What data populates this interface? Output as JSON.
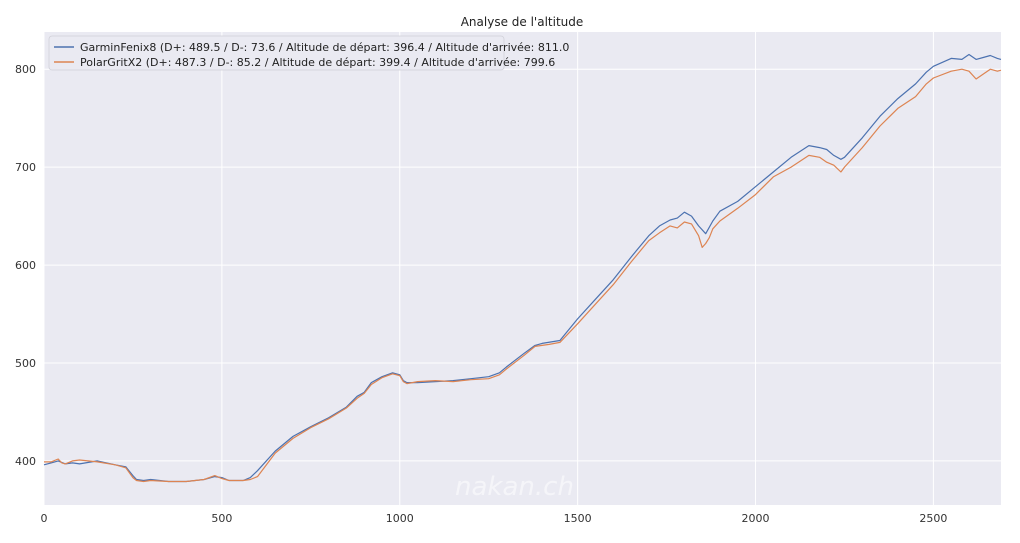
{
  "chart_data": {
    "type": "line",
    "title": "Analyse de l'altitude",
    "xlabel": "",
    "ylabel": "",
    "xlim": [
      0,
      2690
    ],
    "ylim": [
      355,
      838
    ],
    "xticks": [
      0,
      500,
      1000,
      1500,
      2000,
      2500
    ],
    "yticks": [
      400,
      500,
      600,
      700,
      800
    ],
    "grid": true,
    "background": "#eaeaf2",
    "legend_position": "top-left",
    "watermark": "nakan.ch",
    "series": [
      {
        "name": "GarminFenix8 (D+: 489.5 / D-: 73.6 / Altitude de départ: 396.4 / Altitude d'arrivée: 811.0",
        "color": "#4c72b0",
        "x": [
          0,
          20,
          40,
          60,
          80,
          100,
          150,
          200,
          230,
          250,
          260,
          280,
          300,
          350,
          400,
          450,
          480,
          500,
          520,
          560,
          580,
          600,
          650,
          700,
          750,
          800,
          850,
          880,
          900,
          920,
          950,
          980,
          1000,
          1010,
          1020,
          1050,
          1100,
          1150,
          1200,
          1250,
          1280,
          1300,
          1350,
          1380,
          1400,
          1450,
          1500,
          1550,
          1600,
          1650,
          1700,
          1730,
          1760,
          1780,
          1800,
          1820,
          1840,
          1860,
          1880,
          1900,
          1950,
          2000,
          2050,
          2100,
          2150,
          2180,
          2200,
          2220,
          2240,
          2250,
          2300,
          2350,
          2400,
          2450,
          2480,
          2500,
          2550,
          2580,
          2600,
          2620,
          2640,
          2660,
          2680,
          2690
        ],
        "y": [
          396,
          398,
          400,
          397,
          398,
          397,
          400,
          396,
          394,
          385,
          381,
          380,
          381,
          379,
          379,
          381,
          384,
          383,
          380,
          380,
          383,
          390,
          410,
          425,
          435,
          444,
          455,
          466,
          470,
          480,
          486,
          490,
          488,
          482,
          480,
          480,
          481,
          482,
          484,
          486,
          490,
          496,
          510,
          518,
          520,
          523,
          545,
          565,
          585,
          608,
          630,
          640,
          646,
          648,
          654,
          650,
          640,
          632,
          645,
          655,
          665,
          680,
          695,
          710,
          722,
          720,
          718,
          712,
          708,
          710,
          730,
          752,
          770,
          785,
          797,
          803,
          811,
          810,
          815,
          810,
          812,
          814,
          811,
          810
        ]
      },
      {
        "name": "PolarGritX2 (D+: 487.3 / D-: 85.2 / Altitude de départ: 399.4 / Altitude d'arrivée: 799.6",
        "color": "#dd8452",
        "x": [
          0,
          20,
          40,
          50,
          60,
          80,
          100,
          150,
          200,
          230,
          250,
          260,
          280,
          300,
          350,
          400,
          450,
          480,
          500,
          520,
          560,
          580,
          600,
          650,
          700,
          750,
          800,
          850,
          880,
          900,
          920,
          950,
          980,
          1000,
          1010,
          1020,
          1050,
          1100,
          1150,
          1200,
          1250,
          1280,
          1300,
          1350,
          1380,
          1400,
          1420,
          1450,
          1500,
          1550,
          1600,
          1650,
          1700,
          1730,
          1760,
          1780,
          1800,
          1820,
          1840,
          1850,
          1860,
          1870,
          1880,
          1900,
          1950,
          2000,
          2050,
          2100,
          2150,
          2180,
          2200,
          2220,
          2240,
          2250,
          2300,
          2350,
          2400,
          2450,
          2480,
          2500,
          2550,
          2580,
          2600,
          2620,
          2640,
          2660,
          2680,
          2690
        ],
        "y": [
          399,
          399,
          402,
          398,
          397,
          400,
          401,
          399,
          396,
          393,
          383,
          380,
          379,
          380,
          379,
          379,
          381,
          385,
          382,
          380,
          380,
          381,
          384,
          408,
          423,
          434,
          443,
          454,
          464,
          469,
          478,
          485,
          489,
          487,
          481,
          479,
          481,
          482,
          481,
          483,
          484,
          488,
          494,
          508,
          517,
          518,
          519,
          521,
          540,
          560,
          580,
          603,
          625,
          633,
          640,
          638,
          644,
          642,
          630,
          618,
          622,
          628,
          637,
          645,
          658,
          672,
          690,
          700,
          712,
          710,
          705,
          702,
          695,
          700,
          720,
          742,
          760,
          772,
          785,
          791,
          798,
          800,
          798,
          790,
          795,
          800,
          798,
          799
        ]
      }
    ]
  }
}
